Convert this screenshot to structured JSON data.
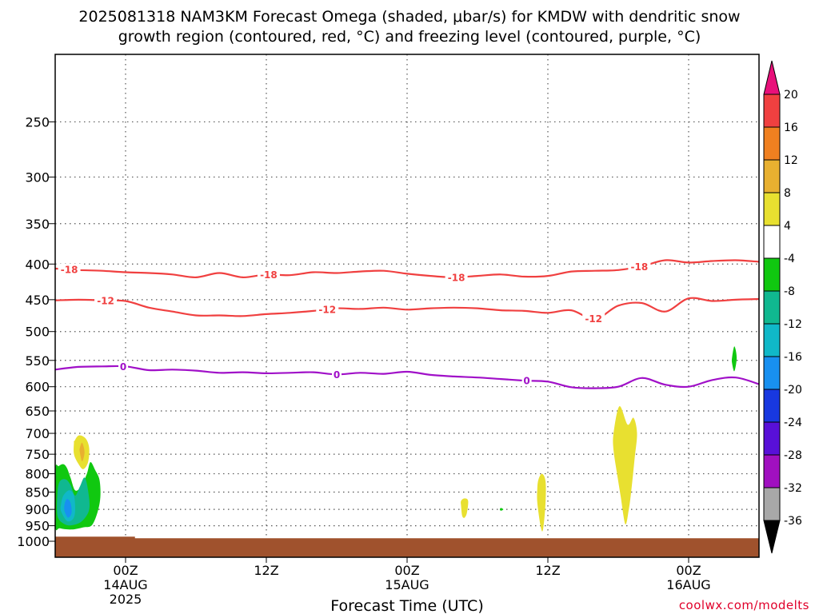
{
  "chart_data": {
    "type": "heatmap",
    "title_lines": [
      "2025081318 NAM3KM Forecast Omega (shaded, μbar/s) for KMDW with dendritic snow",
      "growth region (contoured, red, °C) and freezing level (contoured, purple, °C)"
    ],
    "xlabel": "Forecast Time (UTC)",
    "ylabel": "",
    "y_scale": "log-pressure (inverted)",
    "ylim": [
      1000,
      200
    ],
    "y_ticks": [
      250,
      300,
      350,
      400,
      450,
      500,
      550,
      600,
      650,
      700,
      750,
      800,
      850,
      900,
      950,
      1000
    ],
    "x_range_hours": [
      18,
      78
    ],
    "x_ticks": [
      {
        "hour": 24,
        "label": "00Z",
        "sub1": "14AUG",
        "sub2": "2025"
      },
      {
        "hour": 36,
        "label": "12Z",
        "sub1": "",
        "sub2": ""
      },
      {
        "hour": 48,
        "label": "00Z",
        "sub1": "15AUG",
        "sub2": ""
      },
      {
        "hour": 60,
        "label": "12Z",
        "sub1": "",
        "sub2": ""
      },
      {
        "hour": 72,
        "label": "00Z",
        "sub1": "16AUG",
        "sub2": ""
      }
    ],
    "grid": "dotted",
    "colorbar": {
      "levels": [
        20,
        16,
        12,
        8,
        4,
        -4,
        -8,
        -12,
        -16,
        -20,
        -24,
        -28,
        -32,
        -36
      ],
      "colors": [
        "#e8107a",
        "#f04040",
        "#f08020",
        "#e8b030",
        "#e8e030",
        "#ffffff",
        "#10c810",
        "#10b890",
        "#10b8c8",
        "#1890f0",
        "#1838e0",
        "#5810d8",
        "#a010c0",
        "#a8a8a8",
        "#000000"
      ]
    },
    "series": [
      {
        "contour": "dendritic growth -12",
        "color": "#f04040",
        "labels": [
          {
            "hour": 22.3,
            "text": "-12"
          },
          {
            "hour": 41.2,
            "text": "-12"
          },
          {
            "hour": 63.9,
            "text": "-12"
          }
        ],
        "x": [
          18,
          20,
          22,
          24,
          26,
          28,
          30,
          32,
          34,
          36,
          38,
          40,
          42,
          44,
          46,
          48,
          50,
          52,
          54,
          56,
          58,
          60,
          62,
          64,
          66,
          68,
          70,
          72,
          74,
          76,
          78
        ],
        "y": [
          451,
          450,
          451,
          452,
          462,
          468,
          474,
          474,
          475,
          472,
          470,
          467,
          463,
          464,
          462,
          465,
          463,
          462,
          463,
          466,
          467,
          470,
          466,
          480,
          459,
          455,
          468,
          448,
          452,
          450,
          449
        ]
      },
      {
        "contour": "dendritic growth -18",
        "color": "#f04040",
        "labels": [
          {
            "hour": 19.2,
            "text": "-18"
          },
          {
            "hour": 36.2,
            "text": "-18"
          },
          {
            "hour": 52.2,
            "text": "-18"
          },
          {
            "hour": 67.8,
            "text": "-18"
          }
        ],
        "x": [
          18,
          20,
          22,
          24,
          26,
          28,
          30,
          32,
          34,
          36,
          38,
          40,
          42,
          44,
          46,
          48,
          50,
          52,
          54,
          56,
          58,
          60,
          62,
          64,
          66,
          68,
          70,
          72,
          74,
          76,
          78
        ],
        "y": [
          406,
          408,
          409,
          411,
          412,
          414,
          418,
          412,
          418,
          414,
          415,
          411,
          412,
          410,
          409,
          413,
          416,
          418,
          416,
          414,
          417,
          416,
          410,
          409,
          408,
          403,
          395,
          398,
          396,
          395,
          397
        ]
      },
      {
        "contour": "freezing level 0",
        "color": "#a010c8",
        "labels": [
          {
            "hour": 23.8,
            "text": "0"
          },
          {
            "hour": 42.0,
            "text": "0"
          },
          {
            "hour": 58.2,
            "text": "0"
          }
        ],
        "x": [
          18,
          20,
          22,
          24,
          26,
          28,
          30,
          32,
          34,
          36,
          38,
          40,
          42,
          44,
          46,
          48,
          50,
          52,
          54,
          56,
          58,
          60,
          62,
          64,
          66,
          68,
          70,
          72,
          74,
          76,
          78
        ],
        "y": [
          567,
          562,
          561,
          561,
          568,
          567,
          569,
          573,
          572,
          574,
          573,
          572,
          576,
          573,
          575,
          571,
          577,
          580,
          582,
          585,
          588,
          590,
          601,
          603,
          600,
          583,
          596,
          600,
          587,
          582,
          595
        ]
      }
    ],
    "shaded_regions": [
      {
        "desc": "upward motion -4 to -8",
        "color": "#10c810",
        "x": [
          18.0,
          18.4,
          19.4,
          20.4,
          21.2,
          21.8,
          21.8,
          21.4,
          21.0,
          20.7,
          20.2,
          19.7,
          19.3,
          19.0,
          18.7,
          18.3,
          18.0
        ],
        "y": [
          948,
          958,
          962,
          955,
          945,
          880,
          820,
          790,
          770,
          800,
          835,
          845,
          810,
          785,
          775,
          780,
          790
        ]
      },
      {
        "desc": "upward motion -8 to -12",
        "color": "#10b890",
        "x": [
          18.2,
          18.8,
          19.5,
          20.3,
          20.9,
          20.8,
          20.5,
          20.1,
          19.7,
          19.3,
          18.9,
          18.4,
          18.2
        ],
        "y": [
          920,
          945,
          948,
          935,
          900,
          845,
          810,
          835,
          860,
          830,
          815,
          820,
          850
        ]
      },
      {
        "desc": "upward motion -12 to -16",
        "color": "#10b8c8",
        "x": [
          18.5,
          19.0,
          19.5,
          19.7,
          19.6,
          19.2,
          18.7,
          18.5
        ],
        "y": [
          905,
          935,
          930,
          905,
          860,
          845,
          860,
          885
        ]
      },
      {
        "desc": "upward motion -16 to -20",
        "color": "#1890f0",
        "x": [
          18.8,
          19.1,
          19.4,
          19.3,
          19.0,
          18.8
        ],
        "y": [
          905,
          925,
          910,
          880,
          870,
          885
        ]
      },
      {
        "desc": "downward motion 4 to 8 (upper)",
        "color": "#e8e030",
        "x": [
          19.6,
          20.0,
          20.6,
          20.9,
          20.8,
          20.4,
          20.0,
          19.6,
          19.6
        ],
        "y": [
          720,
          705,
          712,
          735,
          770,
          788,
          775,
          750,
          720
        ]
      },
      {
        "desc": "downward motion 8 to 12",
        "color": "#e8b030",
        "x": [
          20.1,
          20.3,
          20.5,
          20.3,
          20.1
        ],
        "y": [
          735,
          722,
          745,
          768,
          745
        ]
      },
      {
        "desc": "downward motion 4 to 8 (15AUG 06Z)",
        "color": "#e8e030",
        "x": [
          52.6,
          52.9,
          53.2,
          53.1,
          52.9,
          52.7,
          52.6
        ],
        "y": [
          875,
          868,
          875,
          910,
          925,
          920,
          890
        ]
      },
      {
        "desc": "downward motion 4 to 8 (15AUG 11Z)",
        "color": "#e8e030",
        "x": [
          59.2,
          59.5,
          59.8,
          59.8,
          59.6,
          59.4,
          59.1,
          59.1
        ],
        "y": [
          815,
          800,
          820,
          880,
          960,
          955,
          880,
          840
        ]
      },
      {
        "desc": "upward motion -4 to -8 (speck)",
        "color": "#10c810",
        "x": [
          56.0,
          56.2,
          56.0,
          55.9
        ],
        "y": [
          896,
          900,
          904,
          900
        ]
      },
      {
        "desc": "downward motion 4 to 8 (15AUG 19Z-21Z)",
        "color": "#e8e030",
        "x": [
          65.6,
          66.1,
          66.8,
          67.3,
          67.6,
          67.4,
          67.1,
          66.9,
          66.6,
          66.2,
          65.9,
          65.6
        ],
        "y": [
          700,
          640,
          680,
          665,
          700,
          760,
          850,
          900,
          945,
          860,
          800,
          740
        ]
      },
      {
        "desc": "upward motion -4 to -8 (16AUG 03Z)",
        "color": "#10c810",
        "x": [
          75.7,
          75.9,
          76.1,
          75.9,
          75.7
        ],
        "y": [
          545,
          525,
          545,
          570,
          555
        ]
      }
    ],
    "surface": {
      "desc": "below ground",
      "color": "#a0522d",
      "pressure_top": 985,
      "top_step": {
        "from_hour": 24.8,
        "pressure": 990
      }
    }
  },
  "credit": "coolwx.com/modelts"
}
